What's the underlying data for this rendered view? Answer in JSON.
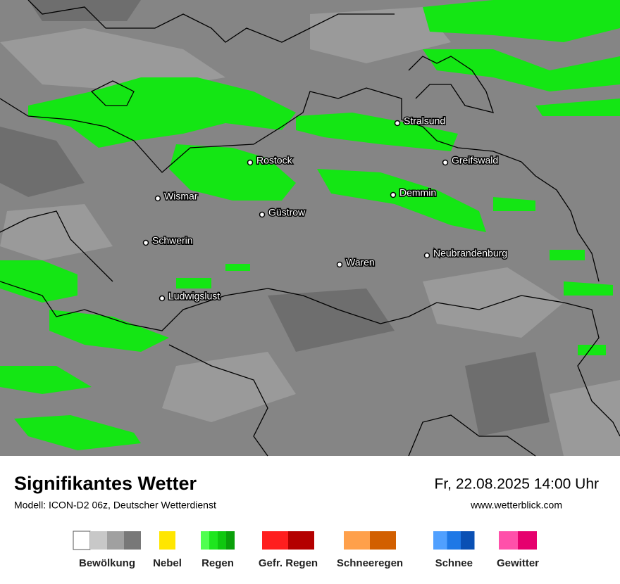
{
  "header": {
    "title": "Signifikantes Wetter",
    "model": "Modell: ICON-D2 06z, Deutscher Wetterdienst",
    "datetime": "Fr, 22.08.2025 14:00 Uhr",
    "website": "www.wetterblick.com"
  },
  "map": {
    "cities": [
      "Stralsund",
      "Rostock",
      "Greifswald",
      "Wismar",
      "Demmin",
      "Güstrow",
      "Schwerin",
      "Waren",
      "Neubrandenburg",
      "Ludwigslust"
    ]
  },
  "legend": [
    {
      "label": "Bewölkung",
      "colors": [
        "#ffffff",
        "#c8c8c8",
        "#a0a0a0",
        "#787878"
      ]
    },
    {
      "label": "Nebel",
      "colors": [
        "#ffe600"
      ]
    },
    {
      "label": "Regen",
      "colors": [
        "#50ff50",
        "#1ee61e",
        "#0fc80f",
        "#0aa00a"
      ]
    },
    {
      "label": "Gefr. Regen",
      "colors": [
        "#ff1e1e",
        "#b40000"
      ]
    },
    {
      "label": "Schneeregen",
      "colors": [
        "#ffa04b",
        "#d25f00"
      ]
    },
    {
      "label": "Schnee",
      "colors": [
        "#50a0ff",
        "#1e78e6",
        "#0a50b4"
      ]
    },
    {
      "label": "Gewitter",
      "colors": [
        "#ff50aa",
        "#e6006e"
      ]
    }
  ]
}
